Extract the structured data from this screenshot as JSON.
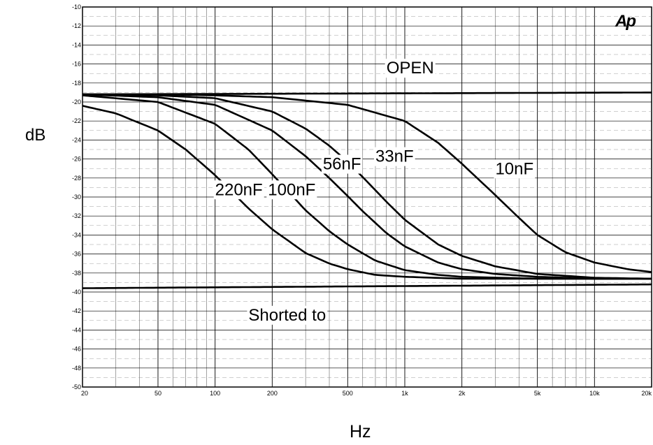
{
  "chart_data": {
    "type": "line",
    "title": "",
    "xlabel": "Hz",
    "ylabel": "dB",
    "logo": "Ap",
    "x_scale": "log",
    "xlim": [
      20,
      20000
    ],
    "ylim": [
      -50,
      -10
    ],
    "grid": true,
    "x_ticks": [
      {
        "value": 20,
        "label": "20"
      },
      {
        "value": 50,
        "label": "50"
      },
      {
        "value": 100,
        "label": "100"
      },
      {
        "value": 200,
        "label": "200"
      },
      {
        "value": 500,
        "label": "500"
      },
      {
        "value": 1000,
        "label": "1k"
      },
      {
        "value": 2000,
        "label": "2k"
      },
      {
        "value": 5000,
        "label": "5k"
      },
      {
        "value": 10000,
        "label": "10k"
      },
      {
        "value": 20000,
        "label": "20k"
      }
    ],
    "y_ticks": [
      -10,
      -12,
      -14,
      -16,
      -18,
      -20,
      -22,
      -24,
      -26,
      -28,
      -30,
      -32,
      -34,
      -36,
      -38,
      -40,
      -42,
      -44,
      -46,
      -48,
      -50
    ],
    "series": [
      {
        "name": "OPEN",
        "label": "OPEN",
        "label_pos": [
          800,
          -17.0
        ],
        "x": [
          20,
          20000
        ],
        "y": [
          -19.2,
          -19.0
        ]
      },
      {
        "name": "10nF",
        "label": "10nF",
        "label_pos": [
          3000,
          -27.6
        ],
        "x": [
          20,
          50,
          100,
          200,
          500,
          1000,
          1500,
          2000,
          3000,
          4000,
          5000,
          7000,
          10000,
          15000,
          20000
        ],
        "y": [
          -19.2,
          -19.2,
          -19.3,
          -19.5,
          -20.3,
          -22.0,
          -24.3,
          -26.5,
          -29.8,
          -32.2,
          -34.0,
          -35.8,
          -36.9,
          -37.6,
          -37.9
        ]
      },
      {
        "name": "33nF",
        "label": "33nF",
        "label_pos": [
          700,
          -26.3
        ],
        "x": [
          20,
          50,
          100,
          200,
          300,
          400,
          500,
          600,
          800,
          1000,
          1500,
          2000,
          3000,
          5000,
          10000,
          20000
        ],
        "y": [
          -19.2,
          -19.3,
          -19.6,
          -21.0,
          -22.8,
          -24.6,
          -26.3,
          -27.9,
          -30.5,
          -32.4,
          -35.0,
          -36.2,
          -37.3,
          -38.1,
          -38.5,
          -38.6
        ]
      },
      {
        "name": "56nF",
        "label": "56nF",
        "label_pos": [
          370,
          -27.1
        ],
        "x": [
          20,
          50,
          100,
          200,
          300,
          400,
          500,
          600,
          800,
          1000,
          1500,
          2000,
          3000,
          5000,
          10000,
          20000
        ],
        "y": [
          -19.2,
          -19.5,
          -20.3,
          -23.0,
          -25.7,
          -28.0,
          -29.9,
          -31.5,
          -33.8,
          -35.2,
          -36.9,
          -37.6,
          -38.1,
          -38.4,
          -38.6,
          -38.6
        ]
      },
      {
        "name": "100nF",
        "label": "100nF",
        "label_pos": [
          190,
          -29.8
        ],
        "x": [
          20,
          50,
          100,
          150,
          200,
          300,
          400,
          500,
          700,
          1000,
          1500,
          2000,
          5000,
          10000,
          20000
        ],
        "y": [
          -19.3,
          -20.0,
          -22.3,
          -25.0,
          -27.6,
          -31.4,
          -33.6,
          -35.0,
          -36.7,
          -37.7,
          -38.2,
          -38.4,
          -38.6,
          -38.6,
          -38.6
        ]
      },
      {
        "name": "220nF",
        "label": "220nF",
        "label_pos": [
          100,
          -29.8
        ],
        "x": [
          20,
          30,
          50,
          70,
          100,
          150,
          200,
          300,
          400,
          500,
          700,
          1000,
          2000,
          5000,
          20000
        ],
        "y": [
          -20.4,
          -21.2,
          -23.0,
          -25.0,
          -27.7,
          -31.2,
          -33.4,
          -35.9,
          -37.0,
          -37.6,
          -38.2,
          -38.4,
          -38.6,
          -38.6,
          -38.6
        ]
      },
      {
        "name": "Shorted to",
        "label": "Shorted to",
        "label_pos": [
          150,
          -43.0
        ],
        "x": [
          20,
          20000
        ],
        "y": [
          -39.6,
          -39.2
        ]
      }
    ]
  }
}
